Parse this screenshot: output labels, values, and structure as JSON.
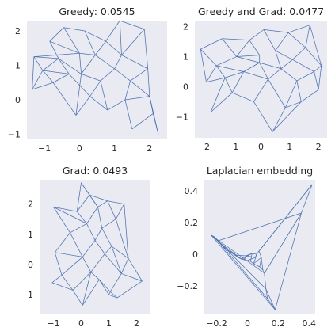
{
  "chart_data": [
    {
      "type": "network",
      "title": "Greedy: 0.0545",
      "xlim": [
        -1.5,
        2.5
      ],
      "ylim": [
        -1.15,
        2.3
      ],
      "xticks": [
        -1,
        0,
        1,
        2
      ],
      "yticks": [
        -1,
        0,
        1,
        2
      ],
      "grid": false,
      "nodes": [
        [
          -1.35,
          0.3
        ],
        [
          -1.3,
          1.25
        ],
        [
          -1.05,
          0.85
        ],
        [
          -0.85,
          1.7
        ],
        [
          -0.75,
          0.5
        ],
        [
          -0.6,
          1.2
        ],
        [
          -0.45,
          2.1
        ],
        [
          -0.3,
          0.75
        ],
        [
          -0.1,
          -0.45
        ],
        [
          0.0,
          1.35
        ],
        [
          0.05,
          0.75
        ],
        [
          0.15,
          2.0
        ],
        [
          0.3,
          0.1
        ],
        [
          0.45,
          1.3
        ],
        [
          0.6,
          0.55
        ],
        [
          0.75,
          1.7
        ],
        [
          0.8,
          -0.3
        ],
        [
          1.0,
          0.9
        ],
        [
          1.15,
          2.3
        ],
        [
          1.2,
          1.3
        ],
        [
          1.3,
          0.0
        ],
        [
          1.45,
          0.55
        ],
        [
          1.5,
          -0.85
        ],
        [
          1.85,
          2.05
        ],
        [
          1.95,
          0.9
        ],
        [
          2.0,
          0.1
        ],
        [
          2.1,
          -0.4
        ],
        [
          2.25,
          -1.0
        ]
      ],
      "edges": [
        [
          0,
          1
        ],
        [
          0,
          2
        ],
        [
          0,
          4
        ],
        [
          1,
          2
        ],
        [
          1,
          5
        ],
        [
          1,
          9
        ],
        [
          2,
          4
        ],
        [
          2,
          5
        ],
        [
          2,
          7
        ],
        [
          3,
          5
        ],
        [
          3,
          6
        ],
        [
          3,
          9
        ],
        [
          4,
          7
        ],
        [
          4,
          8
        ],
        [
          5,
          7
        ],
        [
          5,
          10
        ],
        [
          6,
          9
        ],
        [
          6,
          11
        ],
        [
          7,
          10
        ],
        [
          7,
          12
        ],
        [
          8,
          12
        ],
        [
          8,
          10
        ],
        [
          9,
          13
        ],
        [
          9,
          10
        ],
        [
          10,
          14
        ],
        [
          10,
          13
        ],
        [
          11,
          15
        ],
        [
          11,
          13
        ],
        [
          12,
          16
        ],
        [
          12,
          14
        ],
        [
          13,
          17
        ],
        [
          13,
          15
        ],
        [
          14,
          17
        ],
        [
          14,
          16
        ],
        [
          15,
          19
        ],
        [
          15,
          18
        ],
        [
          16,
          20
        ],
        [
          17,
          19
        ],
        [
          17,
          21
        ],
        [
          18,
          19
        ],
        [
          18,
          23
        ],
        [
          19,
          24
        ],
        [
          20,
          21
        ],
        [
          20,
          22
        ],
        [
          21,
          24
        ],
        [
          21,
          25
        ],
        [
          22,
          26
        ],
        [
          23,
          24
        ],
        [
          24,
          25
        ],
        [
          25,
          26
        ],
        [
          26,
          27
        ],
        [
          25,
          27
        ],
        [
          20,
          25
        ],
        [
          19,
          23
        ]
      ]
    },
    {
      "type": "network",
      "title": "Greedy and Grad: 0.0477",
      "xlim": [
        -2.3,
        2.3
      ],
      "ylim": [
        -1.7,
        2.2
      ],
      "xticks": [
        -2,
        -1,
        0,
        1,
        2
      ],
      "yticks": [
        -1,
        0,
        1,
        2
      ],
      "grid": false,
      "nodes": [
        [
          -2.1,
          1.25
        ],
        [
          -1.9,
          0.15
        ],
        [
          -1.75,
          -0.85
        ],
        [
          -1.55,
          0.7
        ],
        [
          -1.35,
          1.6
        ],
        [
          -1.25,
          0.3
        ],
        [
          -1.0,
          -0.2
        ],
        [
          -0.85,
          1.0
        ],
        [
          -0.6,
          0.5
        ],
        [
          -0.4,
          1.55
        ],
        [
          -0.25,
          -0.5
        ],
        [
          -0.05,
          0.8
        ],
        [
          0.1,
          1.9
        ],
        [
          0.25,
          0.25
        ],
        [
          0.4,
          -1.5
        ],
        [
          0.5,
          1.2
        ],
        [
          0.7,
          0.6
        ],
        [
          0.85,
          -0.7
        ],
        [
          0.95,
          1.8
        ],
        [
          1.1,
          0.9
        ],
        [
          1.25,
          0.2
        ],
        [
          1.4,
          -0.5
        ],
        [
          1.55,
          1.3
        ],
        [
          1.7,
          2.05
        ],
        [
          1.85,
          0.5
        ],
        [
          2.0,
          -0.1
        ],
        [
          2.1,
          0.7
        ],
        [
          -0.05,
          1.05
        ]
      ],
      "edges": [
        [
          0,
          3
        ],
        [
          0,
          4
        ],
        [
          0,
          1
        ],
        [
          1,
          3
        ],
        [
          1,
          5
        ],
        [
          2,
          5
        ],
        [
          2,
          6
        ],
        [
          3,
          5
        ],
        [
          3,
          7
        ],
        [
          3,
          8
        ],
        [
          4,
          7
        ],
        [
          4,
          9
        ],
        [
          5,
          6
        ],
        [
          5,
          8
        ],
        [
          6,
          10
        ],
        [
          6,
          8
        ],
        [
          7,
          9
        ],
        [
          7,
          11
        ],
        [
          7,
          27
        ],
        [
          8,
          11
        ],
        [
          8,
          13
        ],
        [
          9,
          12
        ],
        [
          9,
          27
        ],
        [
          10,
          13
        ],
        [
          10,
          14
        ],
        [
          11,
          13
        ],
        [
          11,
          16
        ],
        [
          11,
          27
        ],
        [
          12,
          15
        ],
        [
          12,
          18
        ],
        [
          13,
          16
        ],
        [
          13,
          17
        ],
        [
          14,
          17
        ],
        [
          15,
          18
        ],
        [
          15,
          19
        ],
        [
          15,
          16
        ],
        [
          16,
          19
        ],
        [
          16,
          20
        ],
        [
          17,
          20
        ],
        [
          17,
          21
        ],
        [
          18,
          22
        ],
        [
          18,
          23
        ],
        [
          19,
          22
        ],
        [
          19,
          24
        ],
        [
          20,
          24
        ],
        [
          20,
          21
        ],
        [
          21,
          25
        ],
        [
          22,
          23
        ],
        [
          22,
          26
        ],
        [
          23,
          26
        ],
        [
          24,
          26
        ],
        [
          24,
          25
        ],
        [
          25,
          26
        ],
        [
          14,
          21
        ]
      ]
    },
    {
      "type": "network",
      "title": "Grad: 0.0493",
      "xlim": [
        -1.5,
        2.5
      ],
      "ylim": [
        -1.65,
        2.8
      ],
      "xticks": [
        -1,
        0,
        1,
        2
      ],
      "yticks": [
        -1,
        0,
        1,
        2
      ],
      "grid": false,
      "nodes": [
        [
          -1.0,
          1.9
        ],
        [
          -0.95,
          0.4
        ],
        [
          -1.05,
          -0.6
        ],
        [
          -0.7,
          -0.35
        ],
        [
          -0.4,
          1.05
        ],
        [
          -0.3,
          -0.85
        ],
        [
          -0.15,
          1.75
        ],
        [
          0.0,
          2.7
        ],
        [
          0.05,
          0.25
        ],
        [
          0.05,
          -1.35
        ],
        [
          0.2,
          1.35
        ],
        [
          0.3,
          2.3
        ],
        [
          0.35,
          -0.25
        ],
        [
          0.5,
          0.8
        ],
        [
          0.6,
          1.9
        ],
        [
          0.65,
          -0.5
        ],
        [
          0.75,
          1.2
        ],
        [
          0.85,
          0.35
        ],
        [
          0.95,
          2.1
        ],
        [
          1.0,
          -1.0
        ],
        [
          1.05,
          -0.9
        ],
        [
          1.1,
          0.6
        ],
        [
          1.25,
          1.5
        ],
        [
          1.3,
          -1.1
        ],
        [
          1.45,
          -0.3
        ],
        [
          1.55,
          2.0
        ],
        [
          1.7,
          0.2
        ],
        [
          2.2,
          -0.55
        ]
      ],
      "edges": [
        [
          0,
          6
        ],
        [
          0,
          4
        ],
        [
          0,
          10
        ],
        [
          1,
          4
        ],
        [
          1,
          3
        ],
        [
          1,
          8
        ],
        [
          2,
          3
        ],
        [
          2,
          5
        ],
        [
          3,
          8
        ],
        [
          3,
          5
        ],
        [
          4,
          10
        ],
        [
          4,
          8
        ],
        [
          5,
          9
        ],
        [
          5,
          12
        ],
        [
          6,
          7
        ],
        [
          6,
          10
        ],
        [
          6,
          11
        ],
        [
          7,
          11
        ],
        [
          7,
          14
        ],
        [
          8,
          12
        ],
        [
          8,
          13
        ],
        [
          9,
          12
        ],
        [
          9,
          15
        ],
        [
          10,
          13
        ],
        [
          10,
          14
        ],
        [
          11,
          14
        ],
        [
          11,
          18
        ],
        [
          12,
          15
        ],
        [
          12,
          17
        ],
        [
          13,
          16
        ],
        [
          13,
          17
        ],
        [
          14,
          16
        ],
        [
          14,
          18
        ],
        [
          15,
          19
        ],
        [
          15,
          20
        ],
        [
          16,
          21
        ],
        [
          16,
          22
        ],
        [
          17,
          21
        ],
        [
          17,
          24
        ],
        [
          18,
          22
        ],
        [
          18,
          25
        ],
        [
          19,
          20
        ],
        [
          19,
          23
        ],
        [
          20,
          24
        ],
        [
          20,
          23
        ],
        [
          21,
          26
        ],
        [
          21,
          24
        ],
        [
          22,
          25
        ],
        [
          22,
          26
        ],
        [
          23,
          27
        ],
        [
          24,
          27
        ],
        [
          24,
          26
        ],
        [
          26,
          27
        ],
        [
          25,
          26
        ]
      ]
    },
    {
      "type": "network",
      "title": "Laplacian embedding",
      "xlim": [
        -0.28,
        0.44
      ],
      "ylim": [
        -0.38,
        0.47
      ],
      "xticks": [
        -0.2,
        0.0,
        0.2,
        0.4
      ],
      "yticks": [
        -0.2,
        0.0,
        0.2,
        0.4
      ],
      "grid": false,
      "nodes": [
        [
          -0.235,
          0.12
        ],
        [
          -0.215,
          0.11
        ],
        [
          -0.19,
          0.085
        ],
        [
          -0.17,
          0.065
        ],
        [
          -0.15,
          0.04
        ],
        [
          -0.12,
          0.02
        ],
        [
          -0.1,
          0.015
        ],
        [
          -0.08,
          -0.005
        ],
        [
          -0.06,
          -0.02
        ],
        [
          -0.04,
          -0.03
        ],
        [
          -0.02,
          -0.035
        ],
        [
          0.0,
          -0.04
        ],
        [
          0.02,
          -0.045
        ],
        [
          0.04,
          -0.06
        ],
        [
          0.06,
          0.0
        ],
        [
          0.075,
          0.02
        ],
        [
          0.09,
          -0.02
        ],
        [
          0.1,
          -0.1
        ],
        [
          0.11,
          -0.12
        ],
        [
          0.12,
          -0.22
        ],
        [
          0.13,
          -0.28
        ],
        [
          0.18,
          -0.35
        ],
        [
          0.35,
          0.26
        ],
        [
          0.42,
          0.44
        ],
        [
          0.08,
          -0.08
        ],
        [
          0.05,
          -0.02
        ],
        [
          -0.01,
          -0.01
        ],
        [
          0.03,
          0.005
        ]
      ],
      "edges": [
        [
          0,
          1
        ],
        [
          0,
          2
        ],
        [
          0,
          5
        ],
        [
          1,
          2
        ],
        [
          1,
          3
        ],
        [
          2,
          3
        ],
        [
          2,
          4
        ],
        [
          3,
          4
        ],
        [
          3,
          6
        ],
        [
          4,
          5
        ],
        [
          4,
          7
        ],
        [
          5,
          6
        ],
        [
          5,
          8
        ],
        [
          6,
          7
        ],
        [
          6,
          9
        ],
        [
          7,
          8
        ],
        [
          7,
          26
        ],
        [
          8,
          9
        ],
        [
          8,
          10
        ],
        [
          9,
          10
        ],
        [
          9,
          27
        ],
        [
          10,
          11
        ],
        [
          10,
          26
        ],
        [
          11,
          12
        ],
        [
          11,
          25
        ],
        [
          12,
          13
        ],
        [
          12,
          27
        ],
        [
          13,
          14
        ],
        [
          13,
          16
        ],
        [
          14,
          15
        ],
        [
          14,
          25
        ],
        [
          15,
          16
        ],
        [
          15,
          23
        ],
        [
          16,
          17
        ],
        [
          16,
          24
        ],
        [
          17,
          18
        ],
        [
          17,
          24
        ],
        [
          18,
          19
        ],
        [
          18,
          22
        ],
        [
          19,
          20
        ],
        [
          19,
          21
        ],
        [
          20,
          21
        ],
        [
          21,
          22
        ],
        [
          22,
          23
        ],
        [
          23,
          15
        ],
        [
          0,
          21
        ],
        [
          1,
          20
        ],
        [
          2,
          22
        ],
        [
          24,
          13
        ],
        [
          25,
          26
        ],
        [
          26,
          27
        ],
        [
          27,
          14
        ],
        [
          0,
          18
        ],
        [
          3,
          19
        ]
      ]
    }
  ]
}
